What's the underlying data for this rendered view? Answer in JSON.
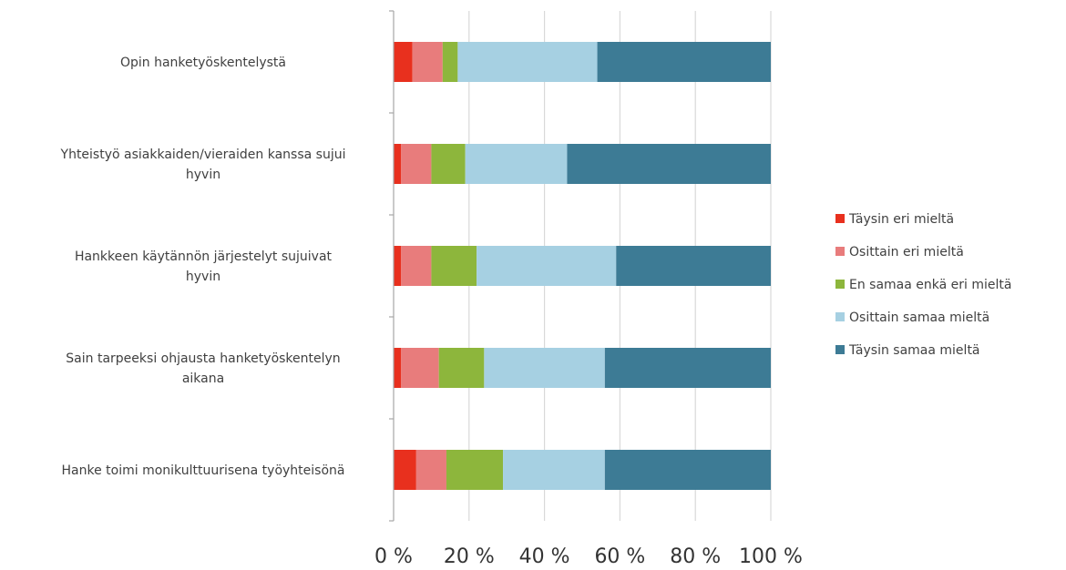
{
  "chart_data": {
    "type": "bar",
    "stacked": true,
    "orientation": "horizontal",
    "percent_stacked": true,
    "categories": [
      "Opin hanketyöskentelystä",
      "Yhteistyö asiakkaiden/vieraiden kanssa sujui hyvin",
      "Hankkeen käytännön järjestelyt sujuivat hyvin",
      "Sain tarpeeksi ohjausta hanketyöskentelyn aikana",
      "Hanke toimi monikulttuurisena työyhteisönä"
    ],
    "category_lines": [
      [
        "Opin hanketyöskentelystä"
      ],
      [
        "Yhteistyö asiakkaiden/vieraiden kanssa sujui",
        "hyvin"
      ],
      [
        "Hankkeen käytännön järjestelyt sujuivat",
        "hyvin"
      ],
      [
        "Sain tarpeeksi ohjausta hanketyöskentelyn",
        "aikana"
      ],
      [
        "Hanke toimi monikulttuurisena työyhteisönä"
      ]
    ],
    "series": [
      {
        "name": "Täysin eri mieltä",
        "color": "#e8301e",
        "values": [
          5,
          2,
          2,
          2,
          6
        ]
      },
      {
        "name": "Osittain eri mieltä",
        "color": "#e87c7c",
        "values": [
          8,
          8,
          8,
          10,
          8
        ]
      },
      {
        "name": "En samaa enkä eri mieltä",
        "color": "#8db63c",
        "values": [
          4,
          9,
          12,
          12,
          15
        ]
      },
      {
        "name": "Osittain samaa mieltä",
        "color": "#a6d0e2",
        "values": [
          37,
          27,
          37,
          32,
          27
        ]
      },
      {
        "name": "Täysin samaa mieltä",
        "color": "#3d7b95",
        "values": [
          46,
          54,
          41,
          44,
          44
        ]
      }
    ],
    "xticks": [
      "0 %",
      "20 %",
      "40 %",
      "60 %",
      "80 %",
      "100 %"
    ],
    "xlim": [
      0,
      100
    ],
    "grid": true,
    "legend_position": "right"
  }
}
